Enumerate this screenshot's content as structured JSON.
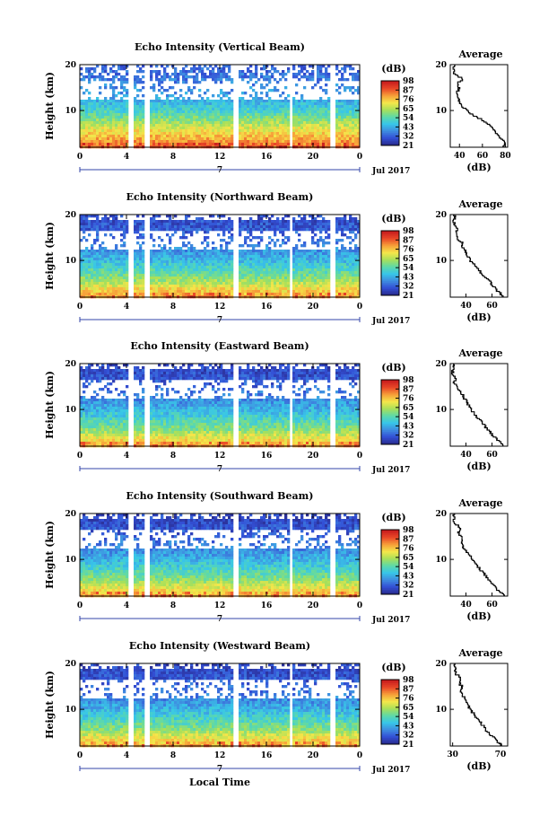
{
  "chart_data": [
    {
      "type": "heatmap",
      "title": "Echo Intensity (Vertical Beam)",
      "ylabel": "Height (km)",
      "x_ticks": [
        "0",
        "4",
        "8",
        "12",
        "16",
        "20",
        "0"
      ],
      "y_ticks": [
        "10",
        "20"
      ],
      "ylim": [
        2,
        20
      ],
      "xlim": [
        0,
        24
      ],
      "date_label": "7",
      "month_label": "Jul 2017",
      "data_gaps_hours": [
        [
          4.1,
          4.5
        ],
        [
          5.5,
          5.9
        ],
        [
          13.0,
          13.5
        ],
        [
          17.8,
          18.2
        ],
        [
          21.4,
          21.8
        ]
      ],
      "colorbar": {
        "unit": "(dB)",
        "ticks": [
          "21",
          "32",
          "43",
          "54",
          "65",
          "76",
          "87",
          "98"
        ],
        "range": [
          21,
          98
        ]
      },
      "intensity_profile_db": [
        {
          "h": 2,
          "v": 88
        },
        {
          "h": 4,
          "v": 80
        },
        {
          "h": 6,
          "v": 72
        },
        {
          "h": 8,
          "v": 62
        },
        {
          "h": 10,
          "v": 52
        },
        {
          "h": 12,
          "v": 45
        },
        {
          "h": 14,
          "v": 40
        },
        {
          "h": 16,
          "v": 37
        },
        {
          "h": 18,
          "v": 34
        },
        {
          "h": 20,
          "v": 32
        }
      ],
      "average": {
        "title": "Average",
        "xlabel": "(dB)",
        "x_ticks": [
          "40",
          "60",
          "80"
        ],
        "y_ticks": [
          "10",
          "20"
        ],
        "xlim": [
          32,
          82
        ],
        "ylim": [
          2,
          20
        ],
        "profile": [
          {
            "h": 2,
            "db": 78
          },
          {
            "h": 3,
            "db": 80
          },
          {
            "h": 4,
            "db": 77
          },
          {
            "h": 5,
            "db": 72
          },
          {
            "h": 6,
            "db": 70
          },
          {
            "h": 7,
            "db": 66
          },
          {
            "h": 8,
            "db": 60
          },
          {
            "h": 9,
            "db": 53
          },
          {
            "h": 10,
            "db": 47
          },
          {
            "h": 11,
            "db": 42
          },
          {
            "h": 12,
            "db": 40
          },
          {
            "h": 13,
            "db": 39
          },
          {
            "h": 14,
            "db": 38
          },
          {
            "h": 15,
            "db": 40
          },
          {
            "h": 16,
            "db": 38
          },
          {
            "h": 17,
            "db": 43
          },
          {
            "h": 18,
            "db": 36
          },
          {
            "h": 19,
            "db": 35
          },
          {
            "h": 20,
            "db": 35
          }
        ]
      }
    },
    {
      "type": "heatmap",
      "title": "Echo Intensity (Northward Beam)",
      "ylabel": "Height (km)",
      "x_ticks": [
        "0",
        "4",
        "8",
        "12",
        "16",
        "20",
        "0"
      ],
      "y_ticks": [
        "10",
        "20"
      ],
      "ylim": [
        2,
        20
      ],
      "xlim": [
        0,
        24
      ],
      "date_label": "7",
      "month_label": "Jul 2017",
      "data_gaps_hours": [
        [
          4.1,
          4.5
        ],
        [
          5.5,
          5.9
        ],
        [
          13.0,
          13.5
        ],
        [
          17.8,
          18.2
        ],
        [
          21.4,
          21.8
        ]
      ],
      "colorbar": {
        "unit": "(dB)",
        "ticks": [
          "21",
          "32",
          "43",
          "54",
          "65",
          "76",
          "87",
          "98"
        ],
        "range": [
          21,
          98
        ]
      },
      "intensity_profile_db": [
        {
          "h": 2,
          "v": 82
        },
        {
          "h": 4,
          "v": 74
        },
        {
          "h": 6,
          "v": 62
        },
        {
          "h": 8,
          "v": 54
        },
        {
          "h": 10,
          "v": 46
        },
        {
          "h": 12,
          "v": 40
        },
        {
          "h": 14,
          "v": 36
        },
        {
          "h": 16,
          "v": 32
        },
        {
          "h": 18,
          "v": 30
        },
        {
          "h": 20,
          "v": 28
        }
      ],
      "average": {
        "title": "Average",
        "xlabel": "(dB)",
        "x_ticks": [
          "40",
          "60"
        ],
        "y_ticks": [
          "10",
          "20"
        ],
        "xlim": [
          28,
          72
        ],
        "ylim": [
          2,
          20
        ],
        "profile": [
          {
            "h": 2,
            "db": 70
          },
          {
            "h": 3,
            "db": 66
          },
          {
            "h": 4,
            "db": 62
          },
          {
            "h": 5,
            "db": 60
          },
          {
            "h": 6,
            "db": 57
          },
          {
            "h": 7,
            "db": 53
          },
          {
            "h": 8,
            "db": 50
          },
          {
            "h": 9,
            "db": 47
          },
          {
            "h": 10,
            "db": 44
          },
          {
            "h": 11,
            "db": 42
          },
          {
            "h": 12,
            "db": 40
          },
          {
            "h": 13,
            "db": 38
          },
          {
            "h": 14,
            "db": 37
          },
          {
            "h": 15,
            "db": 33
          },
          {
            "h": 16,
            "db": 32
          },
          {
            "h": 17,
            "db": 34
          },
          {
            "h": 18,
            "db": 31
          },
          {
            "h": 19,
            "db": 31
          },
          {
            "h": 20,
            "db": 31
          }
        ]
      }
    },
    {
      "type": "heatmap",
      "title": "Echo Intensity (Eastward Beam)",
      "ylabel": "Height (km)",
      "x_ticks": [
        "0",
        "4",
        "8",
        "12",
        "16",
        "20",
        "0"
      ],
      "y_ticks": [
        "10",
        "20"
      ],
      "ylim": [
        2,
        20
      ],
      "xlim": [
        0,
        24
      ],
      "date_label": "7",
      "month_label": "Jul 2017",
      "data_gaps_hours": [
        [
          4.1,
          4.5
        ],
        [
          5.5,
          5.9
        ],
        [
          13.0,
          13.5
        ],
        [
          17.8,
          18.2
        ],
        [
          21.4,
          21.8
        ]
      ],
      "colorbar": {
        "unit": "(dB)",
        "ticks": [
          "21",
          "32",
          "43",
          "54",
          "65",
          "76",
          "87",
          "98"
        ],
        "range": [
          21,
          98
        ]
      },
      "intensity_profile_db": [
        {
          "h": 2,
          "v": 80
        },
        {
          "h": 4,
          "v": 72
        },
        {
          "h": 6,
          "v": 60
        },
        {
          "h": 8,
          "v": 52
        },
        {
          "h": 10,
          "v": 45
        },
        {
          "h": 12,
          "v": 39
        },
        {
          "h": 14,
          "v": 35
        },
        {
          "h": 16,
          "v": 31
        },
        {
          "h": 18,
          "v": 29
        },
        {
          "h": 20,
          "v": 27
        }
      ],
      "average": {
        "title": "Average",
        "xlabel": "(dB)",
        "x_ticks": [
          "40",
          "60"
        ],
        "y_ticks": [
          "10",
          "20"
        ],
        "xlim": [
          28,
          72
        ],
        "ylim": [
          2,
          20
        ],
        "profile": [
          {
            "h": 2,
            "db": 69
          },
          {
            "h": 3,
            "db": 66
          },
          {
            "h": 4,
            "db": 62
          },
          {
            "h": 5,
            "db": 59
          },
          {
            "h": 6,
            "db": 56
          },
          {
            "h": 7,
            "db": 53
          },
          {
            "h": 8,
            "db": 50
          },
          {
            "h": 9,
            "db": 47
          },
          {
            "h": 10,
            "db": 44
          },
          {
            "h": 11,
            "db": 42
          },
          {
            "h": 12,
            "db": 40
          },
          {
            "h": 13,
            "db": 38
          },
          {
            "h": 14,
            "db": 36
          },
          {
            "h": 15,
            "db": 33
          },
          {
            "h": 16,
            "db": 31
          },
          {
            "h": 17,
            "db": 32
          },
          {
            "h": 18,
            "db": 30
          },
          {
            "h": 19,
            "db": 30
          },
          {
            "h": 20,
            "db": 30
          }
        ]
      }
    },
    {
      "type": "heatmap",
      "title": "Echo Intensity (Southward Beam)",
      "ylabel": "Height (km)",
      "x_ticks": [
        "0",
        "4",
        "8",
        "12",
        "16",
        "20",
        "0"
      ],
      "y_ticks": [
        "10",
        "20"
      ],
      "ylim": [
        2,
        20
      ],
      "xlim": [
        0,
        24
      ],
      "date_label": "7",
      "month_label": "Jul 2017",
      "data_gaps_hours": [
        [
          4.1,
          4.5
        ],
        [
          5.5,
          5.9
        ],
        [
          13.0,
          13.5
        ],
        [
          17.8,
          18.2
        ],
        [
          21.4,
          21.8
        ]
      ],
      "colorbar": {
        "unit": "(dB)",
        "ticks": [
          "21",
          "32",
          "43",
          "54",
          "65",
          "76",
          "87",
          "98"
        ],
        "range": [
          21,
          98
        ]
      },
      "intensity_profile_db": [
        {
          "h": 2,
          "v": 80
        },
        {
          "h": 4,
          "v": 72
        },
        {
          "h": 6,
          "v": 60
        },
        {
          "h": 8,
          "v": 52
        },
        {
          "h": 10,
          "v": 45
        },
        {
          "h": 12,
          "v": 39
        },
        {
          "h": 14,
          "v": 35
        },
        {
          "h": 16,
          "v": 31
        },
        {
          "h": 18,
          "v": 29
        },
        {
          "h": 20,
          "v": 27
        }
      ],
      "average": {
        "title": "Average",
        "xlabel": "(dB)",
        "x_ticks": [
          "40",
          "60"
        ],
        "y_ticks": [
          "10",
          "20"
        ],
        "xlim": [
          28,
          72
        ],
        "ylim": [
          2,
          20
        ],
        "profile": [
          {
            "h": 2,
            "db": 70
          },
          {
            "h": 3,
            "db": 66
          },
          {
            "h": 4,
            "db": 63
          },
          {
            "h": 5,
            "db": 60
          },
          {
            "h": 6,
            "db": 57
          },
          {
            "h": 7,
            "db": 54
          },
          {
            "h": 8,
            "db": 51
          },
          {
            "h": 9,
            "db": 48
          },
          {
            "h": 10,
            "db": 45
          },
          {
            "h": 11,
            "db": 43
          },
          {
            "h": 12,
            "db": 40
          },
          {
            "h": 13,
            "db": 38
          },
          {
            "h": 14,
            "db": 36
          },
          {
            "h": 15,
            "db": 37
          },
          {
            "h": 16,
            "db": 34
          },
          {
            "h": 17,
            "db": 36
          },
          {
            "h": 18,
            "db": 31
          },
          {
            "h": 19,
            "db": 31
          },
          {
            "h": 20,
            "db": 31
          }
        ]
      }
    },
    {
      "type": "heatmap",
      "title": "Echo Intensity (Westward Beam)",
      "ylabel": "Height (km)",
      "xlabel": "Local Time",
      "x_ticks": [
        "0",
        "4",
        "8",
        "12",
        "16",
        "20",
        "0"
      ],
      "y_ticks": [
        "10",
        "20"
      ],
      "ylim": [
        2,
        20
      ],
      "xlim": [
        0,
        24
      ],
      "date_label": "7",
      "month_label": "Jul 2017",
      "data_gaps_hours": [
        [
          4.1,
          4.5
        ],
        [
          5.5,
          5.9
        ],
        [
          13.0,
          13.5
        ],
        [
          17.8,
          18.2
        ],
        [
          21.4,
          21.8
        ]
      ],
      "colorbar": {
        "unit": "(dB)",
        "ticks": [
          "21",
          "32",
          "43",
          "54",
          "65",
          "76",
          "87",
          "98"
        ],
        "range": [
          21,
          98
        ]
      },
      "intensity_profile_db": [
        {
          "h": 2,
          "v": 80
        },
        {
          "h": 4,
          "v": 72
        },
        {
          "h": 6,
          "v": 60
        },
        {
          "h": 8,
          "v": 52
        },
        {
          "h": 10,
          "v": 45
        },
        {
          "h": 12,
          "v": 39
        },
        {
          "h": 14,
          "v": 35
        },
        {
          "h": 16,
          "v": 31
        },
        {
          "h": 18,
          "v": 29
        },
        {
          "h": 20,
          "v": 27
        }
      ],
      "average": {
        "title": "Average",
        "xlabel": "(dB)",
        "x_ticks": [
          "30",
          "70"
        ],
        "y_ticks": [
          "10",
          "20"
        ],
        "xlim": [
          28,
          76
        ],
        "ylim": [
          2,
          20
        ],
        "profile": [
          {
            "h": 2,
            "db": 72
          },
          {
            "h": 3,
            "db": 68
          },
          {
            "h": 4,
            "db": 64
          },
          {
            "h": 5,
            "db": 60
          },
          {
            "h": 6,
            "db": 57
          },
          {
            "h": 7,
            "db": 54
          },
          {
            "h": 8,
            "db": 51
          },
          {
            "h": 9,
            "db": 48
          },
          {
            "h": 10,
            "db": 45
          },
          {
            "h": 11,
            "db": 43
          },
          {
            "h": 12,
            "db": 41
          },
          {
            "h": 13,
            "db": 39
          },
          {
            "h": 14,
            "db": 37
          },
          {
            "h": 15,
            "db": 38
          },
          {
            "h": 16,
            "db": 35
          },
          {
            "h": 17,
            "db": 37
          },
          {
            "h": 18,
            "db": 32
          },
          {
            "h": 19,
            "db": 32
          },
          {
            "h": 20,
            "db": 32
          }
        ]
      }
    }
  ],
  "colormap": [
    "#2a2c8f",
    "#3350d6",
    "#3f8de0",
    "#38c6e8",
    "#5ed9a8",
    "#a8e05a",
    "#f4e64a",
    "#f7a23a",
    "#ea4a28",
    "#c81e1e"
  ]
}
